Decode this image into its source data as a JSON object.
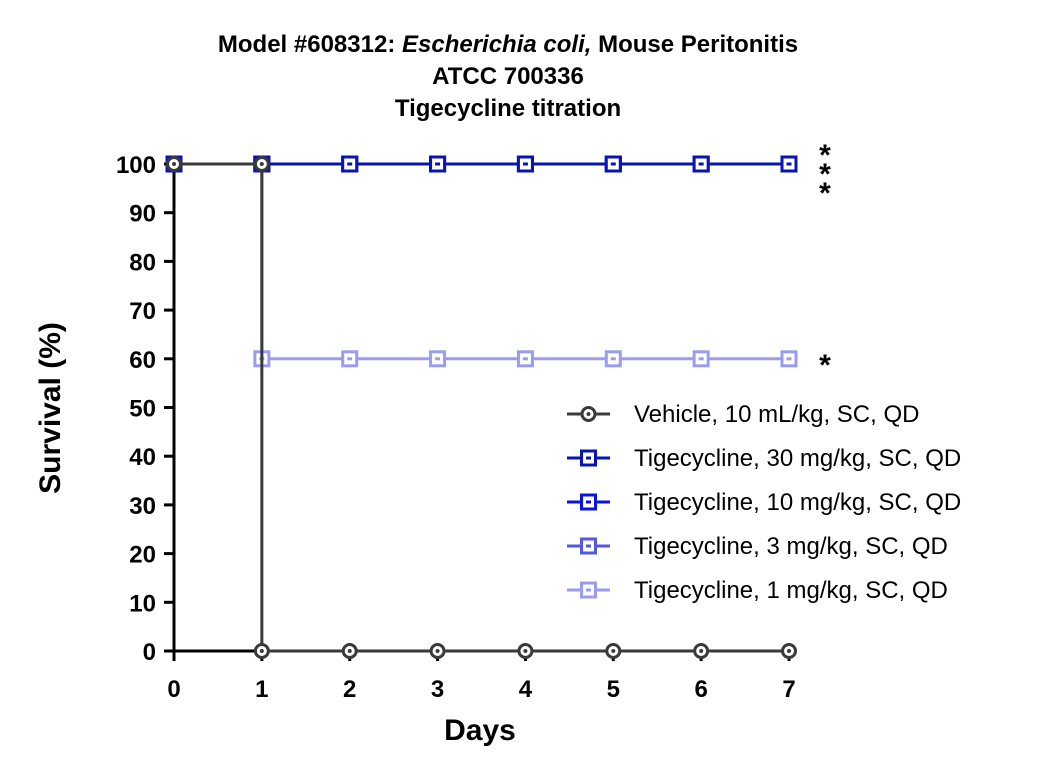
{
  "chart_data": {
    "type": "line",
    "title": {
      "line1_prefix": "Model #608312: ",
      "line1_italic": "Escherichia coli,",
      "line1_suffix": " Mouse Peritonitis",
      "line2": "ATCC 700336",
      "line3": "Tigecycline titration"
    },
    "xlabel": "Days",
    "ylabel": "Survival (%)",
    "xlim": [
      0,
      7
    ],
    "ylim": [
      0,
      100
    ],
    "xticks": [
      0,
      1,
      2,
      3,
      4,
      5,
      6,
      7
    ],
    "yticks": [
      0,
      10,
      20,
      30,
      40,
      50,
      60,
      70,
      80,
      90,
      100
    ],
    "grid": false,
    "legend_position": "right",
    "series": [
      {
        "name": "Vehicle, 10 mL/kg, SC, QD",
        "color": "#3a3a3a",
        "marker": "circle",
        "x": [
          0,
          1,
          1,
          2,
          3,
          4,
          5,
          6,
          7
        ],
        "values": [
          100,
          100,
          0,
          0,
          0,
          0,
          0,
          0,
          0
        ]
      },
      {
        "name": "Tigecycline, 30 mg/kg, SC, QD",
        "color": "#0a14b4",
        "marker": "square",
        "x": [
          0,
          1,
          2,
          3,
          4,
          5,
          6,
          7
        ],
        "values": [
          100,
          100,
          100,
          100,
          100,
          100,
          100,
          100
        ]
      },
      {
        "name": "Tigecycline, 10 mg/kg, SC, QD",
        "color": "#0a14e0",
        "marker": "square",
        "x": [
          0,
          1,
          2,
          3,
          4,
          5,
          6,
          7
        ],
        "values": [
          100,
          100,
          100,
          100,
          100,
          100,
          100,
          100
        ]
      },
      {
        "name": "Tigecycline, 3 mg/kg, SC, QD",
        "color": "#5558e0",
        "marker": "square",
        "x": [
          0,
          1,
          2,
          3,
          4,
          5,
          6,
          7
        ],
        "values": [
          100,
          100,
          100,
          100,
          100,
          100,
          100,
          100
        ]
      },
      {
        "name": "Tigecycline, 1 mg/kg, SC, QD",
        "color": "#9a9cf2",
        "marker": "square",
        "x": [
          0,
          1,
          1,
          2,
          3,
          4,
          5,
          6,
          7
        ],
        "values": [
          100,
          100,
          60,
          60,
          60,
          60,
          60,
          60,
          60
        ]
      }
    ],
    "annotations": [
      {
        "text": "*",
        "y": 100
      },
      {
        "text": "*",
        "y": 100
      },
      {
        "text": "*",
        "y": 100
      },
      {
        "text": "*",
        "y": 60
      }
    ]
  }
}
